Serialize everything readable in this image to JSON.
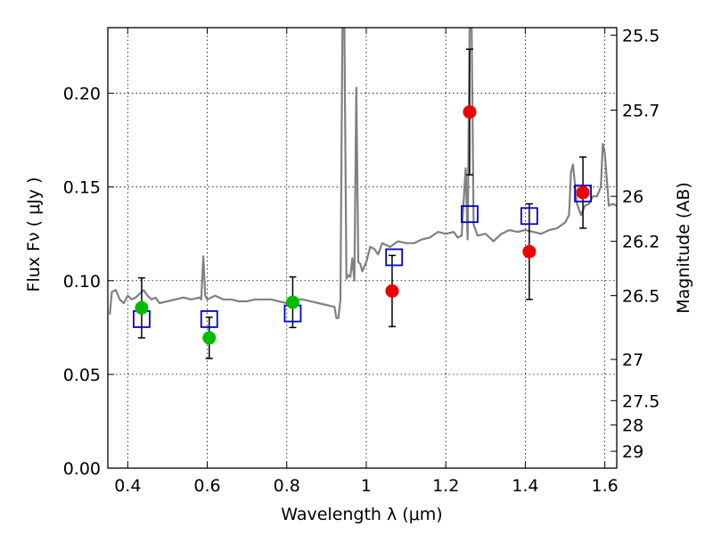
{
  "chart_data": {
    "type": "scatter",
    "title": "",
    "xlabel": "Wavelength  λ (μm)",
    "ylabel": "Flux  Fν  ( μJy )",
    "ylabel_right": "Magnitude (AB)",
    "xlim": [
      0.35,
      1.63
    ],
    "ylim": [
      0.0,
      0.235
    ],
    "grid": true,
    "x_ticks": [
      0.4,
      0.6,
      0.8,
      1.0,
      1.2,
      1.4,
      1.6
    ],
    "x_tick_labels": [
      "0.4",
      "0.6",
      "0.8",
      "1",
      "1.2",
      "1.4",
      "1.6"
    ],
    "y_ticks": [
      0.0,
      0.05,
      0.1,
      0.15,
      0.2
    ],
    "y_tick_labels": [
      "0.00",
      "0.05",
      "0.10",
      "0.15",
      "0.20"
    ],
    "right_ticks": [
      {
        "label": "25.5",
        "flux": 0.231
      },
      {
        "label": "25.7",
        "flux": 0.191
      },
      {
        "label": "26",
        "flux": 0.145
      },
      {
        "label": "26.2",
        "flux": 0.121
      },
      {
        "label": "26.5",
        "flux": 0.092
      },
      {
        "label": "27",
        "flux": 0.058
      },
      {
        "label": "27.5",
        "flux": 0.036
      },
      {
        "label": "28",
        "flux": 0.023
      },
      {
        "label": "29",
        "flux": 0.009
      }
    ],
    "colors": {
      "spectrum": "#808080",
      "model_box": "#0000cc",
      "green": "#00bb00",
      "red": "#ee0000",
      "errorbar": "#000000"
    },
    "spectrum": {
      "x": [
        0.355,
        0.36,
        0.37,
        0.38,
        0.39,
        0.4,
        0.41,
        0.42,
        0.43,
        0.44,
        0.45,
        0.46,
        0.47,
        0.48,
        0.5,
        0.52,
        0.54,
        0.56,
        0.58,
        0.585,
        0.59,
        0.595,
        0.6,
        0.62,
        0.64,
        0.66,
        0.68,
        0.7,
        0.72,
        0.74,
        0.76,
        0.78,
        0.8,
        0.82,
        0.84,
        0.86,
        0.88,
        0.9,
        0.92,
        0.925,
        0.93,
        0.935,
        0.94,
        0.945,
        0.95,
        0.955,
        0.96,
        0.965,
        0.97,
        0.975,
        0.98,
        0.985,
        0.99,
        1.0,
        1.01,
        1.02,
        1.03,
        1.04,
        1.06,
        1.08,
        1.1,
        1.12,
        1.14,
        1.16,
        1.18,
        1.2,
        1.22,
        1.23,
        1.24,
        1.245,
        1.25,
        1.255,
        1.26,
        1.265,
        1.27,
        1.28,
        1.3,
        1.32,
        1.34,
        1.36,
        1.38,
        1.4,
        1.42,
        1.44,
        1.46,
        1.48,
        1.5,
        1.51,
        1.515,
        1.52,
        1.53,
        1.54,
        1.55,
        1.56,
        1.57,
        1.58,
        1.59,
        1.595,
        1.6,
        1.61,
        1.62,
        1.63
      ],
      "y": [
        0.082,
        0.094,
        0.095,
        0.09,
        0.088,
        0.092,
        0.09,
        0.091,
        0.093,
        0.095,
        0.092,
        0.09,
        0.091,
        0.088,
        0.089,
        0.09,
        0.091,
        0.09,
        0.091,
        0.09,
        0.113,
        0.092,
        0.09,
        0.092,
        0.09,
        0.09,
        0.089,
        0.089,
        0.09,
        0.09,
        0.09,
        0.089,
        0.088,
        0.09,
        0.09,
        0.089,
        0.088,
        0.087,
        0.086,
        0.08,
        0.08,
        0.09,
        0.235,
        0.235,
        0.101,
        0.103,
        0.102,
        0.112,
        0.1,
        0.203,
        0.11,
        0.109,
        0.105,
        0.11,
        0.118,
        0.117,
        0.114,
        0.12,
        0.118,
        0.121,
        0.12,
        0.12,
        0.122,
        0.123,
        0.126,
        0.125,
        0.126,
        0.123,
        0.124,
        0.143,
        0.16,
        0.122,
        0.235,
        0.235,
        0.13,
        0.124,
        0.125,
        0.121,
        0.125,
        0.127,
        0.126,
        0.127,
        0.126,
        0.125,
        0.127,
        0.128,
        0.131,
        0.135,
        0.158,
        0.162,
        0.141,
        0.135,
        0.14,
        0.141,
        0.145,
        0.145,
        0.15,
        0.173,
        0.168,
        0.14,
        0.141,
        0.14
      ]
    },
    "model_boxes": {
      "x": [
        0.435,
        0.605,
        0.815,
        1.07,
        1.26,
        1.41,
        1.545
      ],
      "y": [
        0.0795,
        0.0795,
        0.0825,
        0.1125,
        0.1355,
        0.1345,
        0.1465
      ]
    },
    "series": [
      {
        "color": "green",
        "x": [
          0.435,
          0.605,
          0.815
        ],
        "y": [
          0.0855,
          0.0695,
          0.0885
        ],
        "err": [
          0.016,
          0.011,
          0.0135
        ]
      },
      {
        "color": "red",
        "x": [
          1.065,
          1.26,
          1.41,
          1.545
        ],
        "y": [
          0.0945,
          0.19,
          0.1155,
          0.147
        ],
        "err": [
          0.019,
          0.0335,
          0.0255,
          0.019
        ]
      }
    ]
  }
}
